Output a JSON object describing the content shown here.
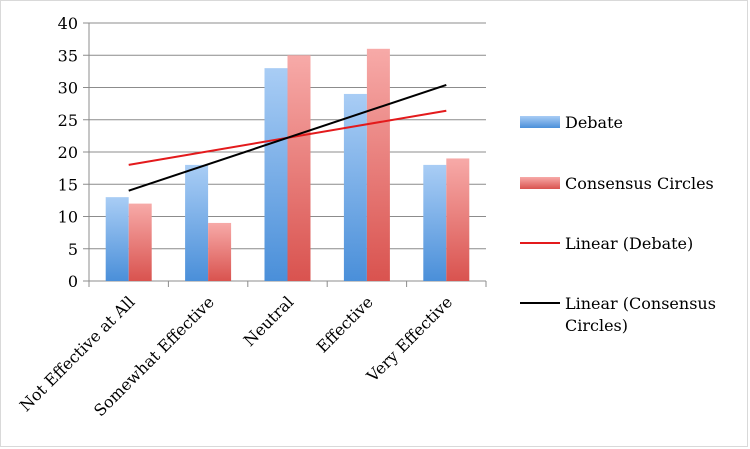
{
  "chart_data": {
    "type": "bar",
    "categories": [
      "Not Effective at All",
      "Somewhat Effective",
      "Neutral",
      "Effective",
      "Very Effective"
    ],
    "series": [
      {
        "name": "Debate",
        "values": [
          13,
          18,
          33,
          29,
          18
        ],
        "color": "#4a8fd9",
        "color_light": "#a9cdf5"
      },
      {
        "name": "Consensus Circles",
        "values": [
          12,
          9,
          35,
          36,
          19
        ],
        "color": "#d9534f",
        "color_light": "#f7aaa8"
      }
    ],
    "trendlines": [
      {
        "name": "Linear (Debate)",
        "of_series": "Debate",
        "type": "linear",
        "color": "#e31a1c"
      },
      {
        "name": "Linear (Consensus Circles)",
        "of_series": "Consensus Circles",
        "type": "linear",
        "color": "#000000"
      }
    ],
    "legend_lines": [
      [
        "Debate"
      ],
      [
        "Consensus Circles"
      ],
      [
        "Linear (Debate)"
      ],
      [
        "Linear (Consensus",
        "Circles)"
      ]
    ],
    "yticks": [
      "0",
      "5",
      "10",
      "15",
      "20",
      "25",
      "30",
      "35",
      "40"
    ],
    "ylim": [
      0,
      40
    ],
    "grid": true,
    "legend_position": "right",
    "title": "",
    "xlabel": "",
    "ylabel": ""
  }
}
